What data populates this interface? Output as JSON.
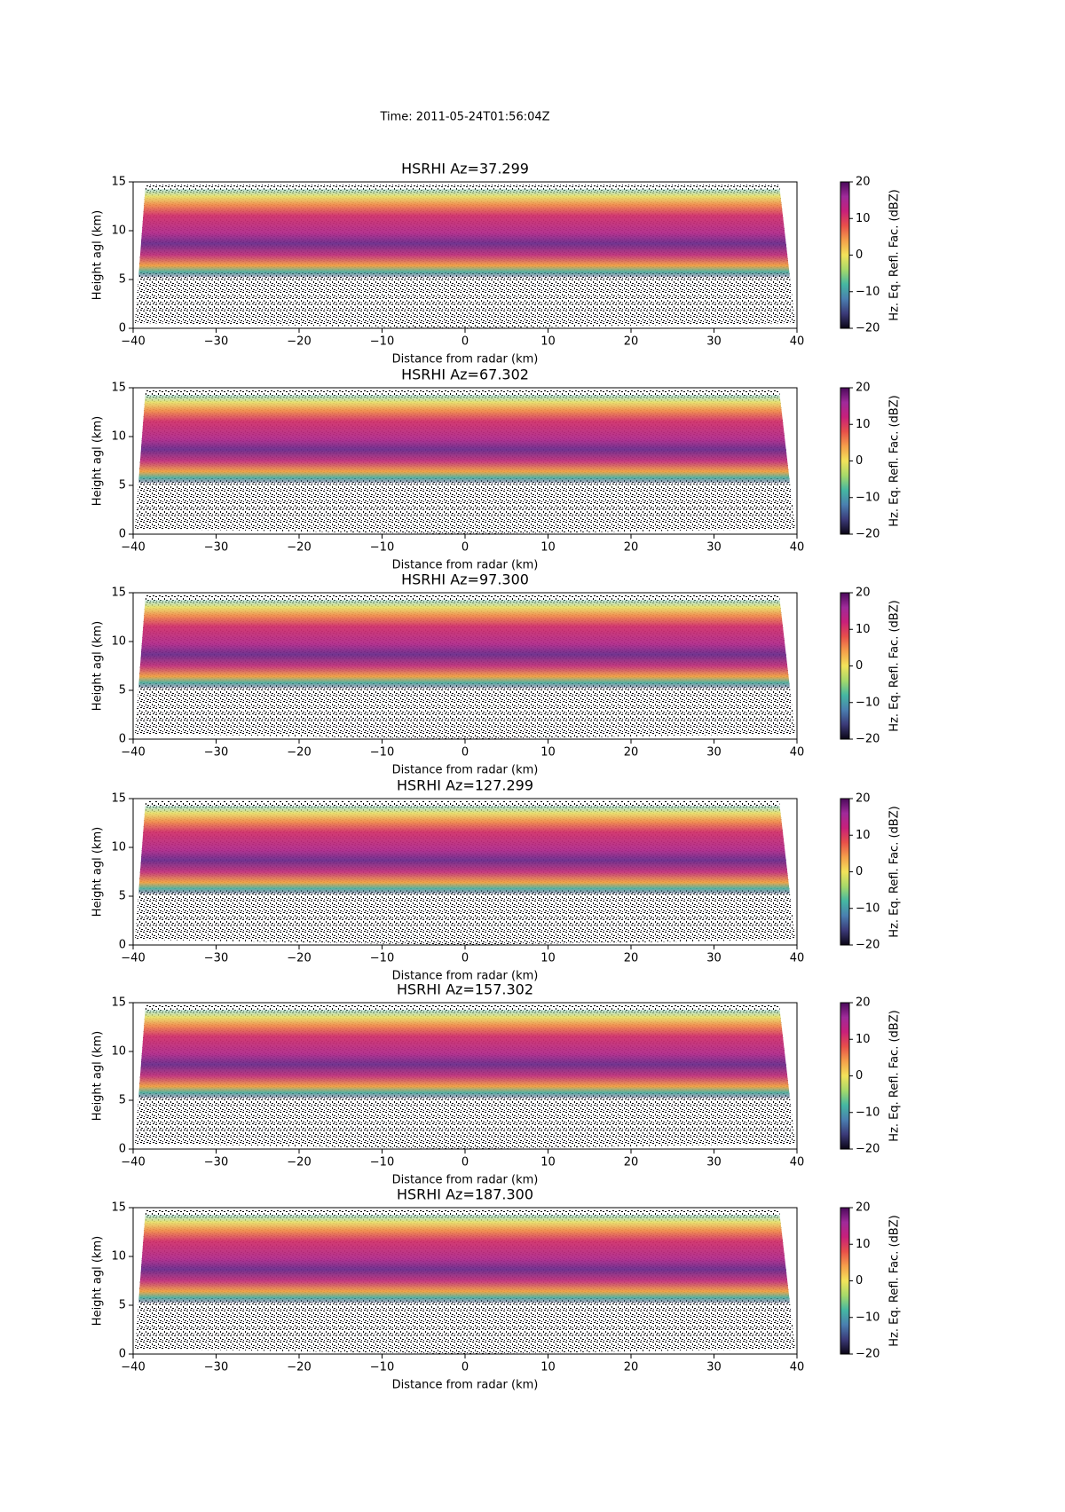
{
  "suptitle": "Time: 2011-05-24T01:56:04Z",
  "chart_data": [
    {
      "type": "heatmap",
      "title": "HSRHI Az=37.299",
      "xlabel": "Distance from radar (km)",
      "ylabel": "Height agl (km)",
      "xlim": [
        -40,
        40
      ],
      "xticks": [
        {
          "value": -40,
          "label": "−40"
        },
        {
          "value": -30,
          "label": "−30"
        },
        {
          "value": -20,
          "label": "−20"
        },
        {
          "value": -10,
          "label": "−10"
        },
        0,
        10,
        20,
        30,
        40
      ],
      "ylim": [
        0,
        15
      ],
      "yticks": [
        0,
        5,
        10,
        15
      ],
      "colorbar": {
        "label": "Hz. Eq. Refl. Fac. (dBZ)",
        "lim": [
          -20,
          20
        ],
        "ticks": [
          {
            "value": -20,
            "label": "−20"
          },
          {
            "value": -10,
            "label": "−10"
          },
          0,
          10,
          20
        ],
        "colors": [
          "#0b0515",
          "#3b3a78",
          "#4a7fb0",
          "#45b7a2",
          "#a6d96a",
          "#f3e35a",
          "#f5a04a",
          "#e8504a",
          "#c8207a",
          "#a02a9a",
          "#4a0a5a"
        ]
      }
    },
    {
      "type": "heatmap",
      "title": "HSRHI Az=67.302",
      "xlabel": "Distance from radar (km)",
      "ylabel": "Height agl (km)",
      "xlim": [
        -40,
        40
      ],
      "xticks": [
        {
          "value": -40,
          "label": "−40"
        },
        {
          "value": -30,
          "label": "−30"
        },
        {
          "value": -20,
          "label": "−20"
        },
        {
          "value": -10,
          "label": "−10"
        },
        0,
        10,
        20,
        30,
        40
      ],
      "ylim": [
        0,
        15
      ],
      "yticks": [
        0,
        5,
        10,
        15
      ],
      "colorbar": {
        "label": "Hz. Eq. Refl. Fac. (dBZ)",
        "lim": [
          -20,
          20
        ],
        "ticks": [
          {
            "value": -20,
            "label": "−20"
          },
          {
            "value": -10,
            "label": "−10"
          },
          0,
          10,
          20
        ],
        "colors": [
          "#0b0515",
          "#3b3a78",
          "#4a7fb0",
          "#45b7a2",
          "#a6d96a",
          "#f3e35a",
          "#f5a04a",
          "#e8504a",
          "#c8207a",
          "#a02a9a",
          "#4a0a5a"
        ]
      }
    },
    {
      "type": "heatmap",
      "title": "HSRHI Az=97.300",
      "xlabel": "Distance from radar (km)",
      "ylabel": "Height agl (km)",
      "xlim": [
        -40,
        40
      ],
      "xticks": [
        {
          "value": -40,
          "label": "−40"
        },
        {
          "value": -30,
          "label": "−30"
        },
        {
          "value": -20,
          "label": "−20"
        },
        {
          "value": -10,
          "label": "−10"
        },
        0,
        10,
        20,
        30,
        40
      ],
      "ylim": [
        0,
        15
      ],
      "yticks": [
        0,
        5,
        10,
        15
      ],
      "colorbar": {
        "label": "Hz. Eq. Refl. Fac. (dBZ)",
        "lim": [
          -20,
          20
        ],
        "ticks": [
          {
            "value": -20,
            "label": "−20"
          },
          {
            "value": -10,
            "label": "−10"
          },
          0,
          10,
          20
        ],
        "colors": [
          "#0b0515",
          "#3b3a78",
          "#4a7fb0",
          "#45b7a2",
          "#a6d96a",
          "#f3e35a",
          "#f5a04a",
          "#e8504a",
          "#c8207a",
          "#a02a9a",
          "#4a0a5a"
        ]
      }
    },
    {
      "type": "heatmap",
      "title": "HSRHI Az=127.299",
      "xlabel": "Distance from radar (km)",
      "ylabel": "Height agl (km)",
      "xlim": [
        -40,
        40
      ],
      "xticks": [
        {
          "value": -40,
          "label": "−40"
        },
        {
          "value": -30,
          "label": "−30"
        },
        {
          "value": -20,
          "label": "−20"
        },
        {
          "value": -10,
          "label": "−10"
        },
        0,
        10,
        20,
        30,
        40
      ],
      "ylim": [
        0,
        15
      ],
      "yticks": [
        0,
        5,
        10,
        15
      ],
      "colorbar": {
        "label": "Hz. Eq. Refl. Fac. (dBZ)",
        "lim": [
          -20,
          20
        ],
        "ticks": [
          {
            "value": -20,
            "label": "−20"
          },
          {
            "value": -10,
            "label": "−10"
          },
          0,
          10,
          20
        ],
        "colors": [
          "#0b0515",
          "#3b3a78",
          "#4a7fb0",
          "#45b7a2",
          "#a6d96a",
          "#f3e35a",
          "#f5a04a",
          "#e8504a",
          "#c8207a",
          "#a02a9a",
          "#4a0a5a"
        ]
      }
    },
    {
      "type": "heatmap",
      "title": "HSRHI Az=157.302",
      "xlabel": "Distance from radar (km)",
      "ylabel": "Height agl (km)",
      "xlim": [
        -40,
        40
      ],
      "xticks": [
        {
          "value": -40,
          "label": "−40"
        },
        {
          "value": -30,
          "label": "−30"
        },
        {
          "value": -20,
          "label": "−20"
        },
        {
          "value": -10,
          "label": "−10"
        },
        0,
        10,
        20,
        30,
        40
      ],
      "ylim": [
        0,
        15
      ],
      "yticks": [
        0,
        5,
        10,
        15
      ],
      "colorbar": {
        "label": "Hz. Eq. Refl. Fac. (dBZ)",
        "lim": [
          -20,
          20
        ],
        "ticks": [
          {
            "value": -20,
            "label": "−20"
          },
          {
            "value": -10,
            "label": "−10"
          },
          0,
          10,
          20
        ],
        "colors": [
          "#0b0515",
          "#3b3a78",
          "#4a7fb0",
          "#45b7a2",
          "#a6d96a",
          "#f3e35a",
          "#f5a04a",
          "#e8504a",
          "#c8207a",
          "#a02a9a",
          "#4a0a5a"
        ]
      }
    },
    {
      "type": "heatmap",
      "title": "HSRHI Az=187.300",
      "xlabel": "Distance from radar (km)",
      "ylabel": "Height agl (km)",
      "xlim": [
        -40,
        40
      ],
      "xticks": [
        {
          "value": -40,
          "label": "−40"
        },
        {
          "value": -30,
          "label": "−30"
        },
        {
          "value": -20,
          "label": "−20"
        },
        {
          "value": -10,
          "label": "−10"
        },
        0,
        10,
        20,
        30,
        40
      ],
      "ylim": [
        0,
        15
      ],
      "yticks": [
        0,
        5,
        10,
        15
      ],
      "colorbar": {
        "label": "Hz. Eq. Refl. Fac. (dBZ)",
        "lim": [
          -20,
          20
        ],
        "ticks": [
          {
            "value": -20,
            "label": "−20"
          },
          {
            "value": -10,
            "label": "−10"
          },
          0,
          10,
          20
        ],
        "colors": [
          "#0b0515",
          "#3b3a78",
          "#4a7fb0",
          "#45b7a2",
          "#a6d96a",
          "#f3e35a",
          "#f5a04a",
          "#e8504a",
          "#c8207a",
          "#a02a9a",
          "#4a0a5a"
        ]
      }
    }
  ]
}
